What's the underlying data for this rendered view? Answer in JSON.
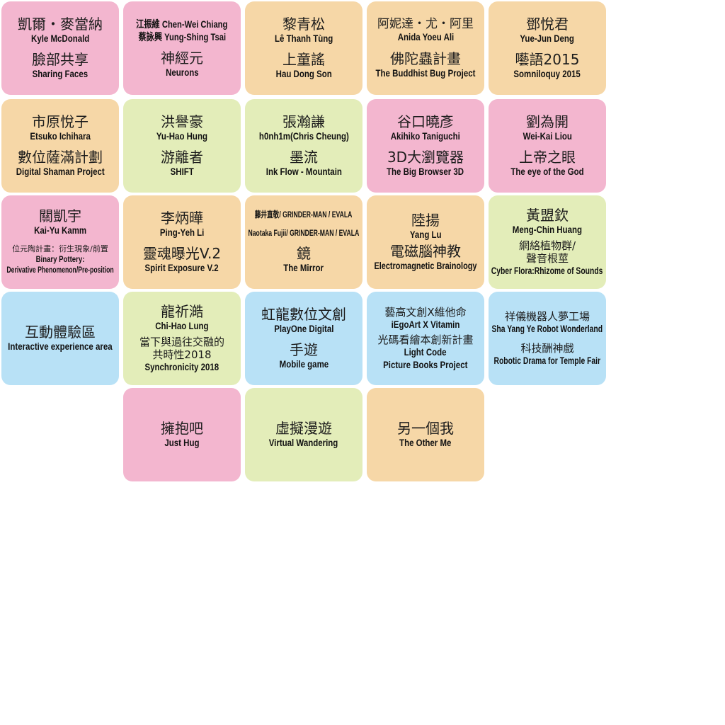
{
  "colors": {
    "pink": "#f3b6cf",
    "orange": "#f6d7a7",
    "green": "#e3edb9",
    "blue": "#b8e1f6"
  },
  "tiles": [
    {
      "zh_name": "凱爾・麥當納",
      "en_name": "Kyle McDonald",
      "zh_work": "臉部共享",
      "en_work": "Sharing Faces"
    },
    {
      "line1": "江振維 Chen-Wei Chiang",
      "line2": "蔡詠興 Yung-Shing Tsai",
      "zh_work": "神經元",
      "en_work": "Neurons"
    },
    {
      "zh_name": "黎青松",
      "en_name": "Lê Thanh Tùng",
      "zh_work": "上童謠",
      "en_work": "Hau Dong Son"
    },
    {
      "zh_name": "阿妮達・尤・阿里",
      "en_name": "Anida Yoeu Ali",
      "zh_work": "佛陀蟲計畫",
      "en_work": "The Buddhist Bug Project"
    },
    {
      "zh_name": "鄧悅君",
      "en_name": "Yue-Jun Deng",
      "zh_work": "囈語2015",
      "en_work": "Somniloquy 2015"
    },
    {
      "zh_name": "市原悅子",
      "en_name": "Etsuko Ichihara",
      "zh_work": "數位薩滿計劃",
      "en_work": "Digital Shaman Project"
    },
    {
      "zh_name": "洪譽豪",
      "en_name": "Yu-Hao Hung",
      "zh_work": "游離者",
      "en_work": "SHIFT"
    },
    {
      "zh_name": "張瀚謙",
      "en_name": "h0nh1m(Chris Cheung)",
      "zh_work": "墨流",
      "en_work": "Ink Flow - Mountain"
    },
    {
      "zh_name": "谷口曉彥",
      "en_name": "Akihiko Taniguchi",
      "zh_work": "3D大瀏覽器",
      "en_work": "The Big Browser 3D"
    },
    {
      "zh_name": "劉為開",
      "en_name": "Wei-Kai Liou",
      "zh_work": "上帝之眼",
      "en_work": "The eye of the God"
    },
    {
      "zh_name": "關凱宇",
      "en_name": "Kai-Yu Kamm",
      "zh_work": "位元陶計畫：衍生現象/前置",
      "en_work_1": "Binary Pottery:",
      "en_work_2": "Derivative Phenomenon/Pre-position"
    },
    {
      "zh_name": "李炳曄",
      "en_name": "Ping-Yeh Li",
      "zh_work": "靈魂曝光V.2",
      "en_work": "Spirit Exposure V.2"
    },
    {
      "line1": "藤井直敬/ GRINDER-MAN / EVALA",
      "line2": "Naotaka Fujii/ GRINDER-MAN / EVALA",
      "zh_work": "鏡",
      "en_work": "The Mirror"
    },
    {
      "zh_name": "陸揚",
      "en_name": "Yang Lu",
      "zh_work": "電磁腦神教",
      "en_work": "Electromagnetic Brainology"
    },
    {
      "zh_name": "黃盟欽",
      "en_name": "Meng-Chin Huang",
      "zh_work_1": "網絡植物群/",
      "zh_work_2": "聲音根莖",
      "en_work": "Cyber Flora:Rhizome of Sounds"
    },
    {
      "zh_work": "互動體驗區",
      "en_work": "Interactive experience area"
    },
    {
      "zh_name": "龍祈澔",
      "en_name": "Chi-Hao Lung",
      "zh_work_1": "當下與過往交融的",
      "zh_work_2": "共時性2018",
      "en_work": "Synchronicity 2018"
    },
    {
      "zh_name": "虹龍數位文創",
      "en_name": "PlayOne Digital",
      "zh_work": "手遊",
      "en_work": "Mobile game"
    },
    {
      "zh_name": "藝高文創X維他命",
      "en_name": "iEgoArt X Vitamin",
      "zh_work": "光碼看繪本創新計畫",
      "en_work_1": "Light Code",
      "en_work_2": "Picture Books Project"
    },
    {
      "zh_name": "祥儀機器人夢工場",
      "en_name": "Sha Yang Ye Robot Wonderland",
      "zh_work": "科技酬神戲",
      "en_work": "Robotic Drama for Temple Fair"
    },
    {
      "zh_work": "擁抱吧",
      "en_work": "Just Hug"
    },
    {
      "zh_work": "虛擬漫遊",
      "en_work": "Virtual Wandering"
    },
    {
      "zh_work": "另一個我",
      "en_work": "The Other Me"
    }
  ]
}
